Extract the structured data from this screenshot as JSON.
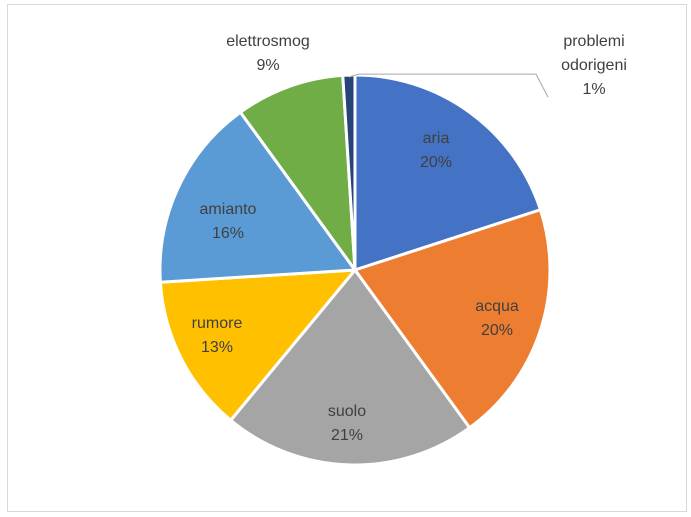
{
  "chart_data": {
    "type": "pie",
    "title": "",
    "slices": [
      {
        "category": "aria",
        "percent_label": "20%",
        "value": 20,
        "color": "#4472C4"
      },
      {
        "category": "acqua",
        "percent_label": "20%",
        "value": 20,
        "color": "#ED7D31"
      },
      {
        "category": "suolo",
        "percent_label": "21%",
        "value": 21,
        "color": "#A5A5A5"
      },
      {
        "category": "rumore",
        "percent_label": "13%",
        "value": 13,
        "color": "#FFC000"
      },
      {
        "category": "amianto",
        "percent_label": "16%",
        "value": 16,
        "color": "#5B9BD5"
      },
      {
        "category": "elettrosmog",
        "percent_label": "9%",
        "value": 9,
        "color": "#70AD47"
      },
      {
        "category": "problemi odorigeni",
        "percent_label": "1%",
        "value": 1,
        "color": "#264478"
      }
    ],
    "legend": "none",
    "data_labels": "category and percent"
  }
}
